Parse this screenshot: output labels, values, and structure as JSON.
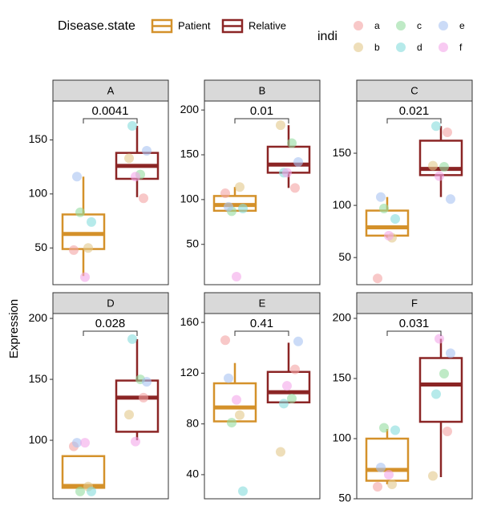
{
  "legend": {
    "title": "Disease.state",
    "items": [
      {
        "name": "Patient",
        "color": "#d4912a"
      },
      {
        "name": "Relative",
        "color": "#8b2525"
      }
    ]
  },
  "indi_legend": {
    "title": "indi",
    "items": [
      {
        "name": "a",
        "color": "#f4a3a3"
      },
      {
        "name": "b",
        "color": "#e2c88a"
      },
      {
        "name": "c",
        "color": "#95dca0"
      },
      {
        "name": "d",
        "color": "#86dcdc"
      },
      {
        "name": "e",
        "color": "#a9c3f2"
      },
      {
        "name": "f",
        "color": "#f3a6ea"
      }
    ]
  },
  "y_label": "Expression",
  "chart_data": [
    {
      "type": "box",
      "title": "A",
      "annotation": "0.0041",
      "ylim": [
        16,
        186
      ],
      "yticks": [
        50,
        100,
        150
      ],
      "boxes": [
        {
          "min": 24,
          "q1": 49,
          "median": 63,
          "q3": 81,
          "max": 116,
          "values": [
            48,
            50,
            83,
            74,
            116,
            23
          ]
        },
        {
          "min": 97,
          "q1": 114,
          "median": 126,
          "q3": 138,
          "max": 163,
          "values": [
            96,
            133,
            118,
            163,
            140,
            116
          ]
        }
      ]
    },
    {
      "type": "box",
      "title": "B",
      "annotation": "0.01",
      "ylim": [
        5,
        210
      ],
      "yticks": [
        50,
        100,
        150,
        200
      ],
      "boxes": [
        {
          "min": 87,
          "q1": 87.5,
          "median": 94,
          "q3": 104,
          "max": 114,
          "values": [
            107,
            114,
            87,
            90,
            92,
            14
          ]
        },
        {
          "min": 113,
          "q1": 130,
          "median": 139,
          "q3": 159,
          "max": 183,
          "values": [
            113,
            183,
            163,
            130,
            142,
            130
          ]
        }
      ]
    },
    {
      "type": "box",
      "title": "C",
      "annotation": "0.021",
      "ylim": [
        24,
        200
      ],
      "yticks": [
        50,
        100,
        150
      ],
      "boxes": [
        {
          "min": 69,
          "q1": 71,
          "median": 79,
          "q3": 95,
          "max": 108,
          "values": [
            30,
            69,
            97,
            87,
            108,
            71
          ]
        },
        {
          "min": 108,
          "q1": 129,
          "median": 135,
          "q3": 162,
          "max": 176,
          "values": [
            170,
            138,
            137,
            176,
            106,
            128
          ]
        }
      ]
    },
    {
      "type": "box",
      "title": "D",
      "annotation": "0.028",
      "ylim": [
        52,
        204
      ],
      "yticks": [
        100,
        150,
        200
      ],
      "boxes": [
        {
          "min": 61,
          "q1": 61,
          "median": 62.5,
          "q3": 87,
          "max": 87,
          "values": [
            95,
            62,
            58,
            58,
            98,
            98
          ]
        },
        {
          "min": 100,
          "q1": 107,
          "median": 135,
          "q3": 149,
          "max": 183,
          "values": [
            135,
            121,
            150,
            183,
            148,
            99
          ]
        }
      ]
    },
    {
      "type": "box",
      "title": "E",
      "annotation": "0.41",
      "ylim": [
        21,
        167
      ],
      "yticks": [
        40,
        80,
        120,
        160
      ],
      "boxes": [
        {
          "min": 82,
          "q1": 82,
          "median": 93,
          "q3": 112,
          "max": 128,
          "values": [
            146,
            87,
            81,
            27,
            116,
            99
          ]
        },
        {
          "min": 97,
          "q1": 97,
          "median": 105,
          "q3": 121,
          "max": 144,
          "values": [
            123,
            58,
            100,
            96,
            145,
            110
          ]
        }
      ]
    },
    {
      "type": "box",
      "title": "F",
      "annotation": "0.031",
      "ylim": [
        50,
        204
      ],
      "yticks": [
        50,
        100,
        150,
        200
      ],
      "boxes": [
        {
          "min": 62,
          "q1": 65,
          "median": 74,
          "q3": 100,
          "max": 108,
          "values": [
            60,
            62,
            109,
            107,
            76,
            70
          ]
        },
        {
          "min": 68,
          "q1": 114,
          "median": 145,
          "q3": 167,
          "max": 183,
          "values": [
            106,
            69,
            154,
            137,
            171,
            183
          ]
        }
      ]
    }
  ]
}
